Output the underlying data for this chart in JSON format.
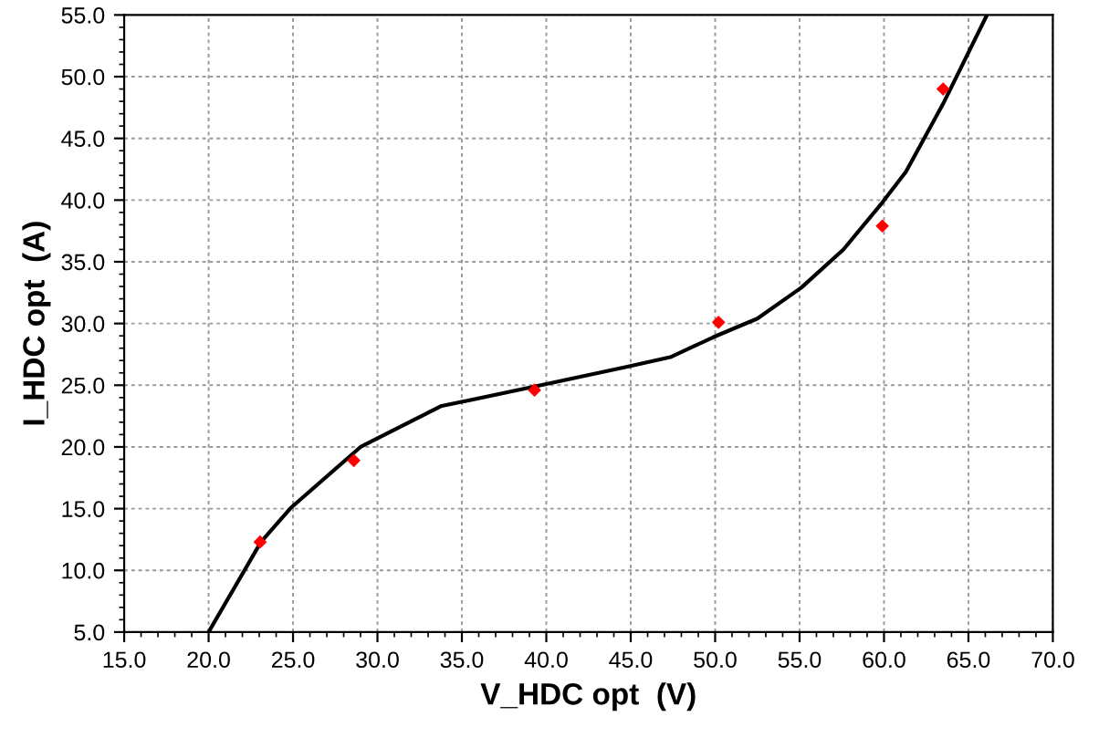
{
  "chart_data": {
    "type": "scatter",
    "xlabel": "V_HDC opt  (V)",
    "ylabel": "I_HDC opt  (A)",
    "series": [
      {
        "color": "#ff0000",
        "marker": "diamond",
        "x": [
          23.05,
          28.6,
          39.3,
          50.2,
          59.9,
          63.5
        ],
        "values": [
          12.3,
          18.9,
          24.6,
          30.1,
          37.9,
          49.0
        ]
      },
      {
        "type": "line",
        "color": "#000000",
        "marker": "none",
        "x": [
          20.0,
          23.1,
          24.9,
          29.0,
          33.75,
          40.0,
          44.8,
          47.4,
          49.9,
          52.5,
          55.1,
          57.6,
          59.9,
          61.3,
          63.5,
          66.1
        ],
        "values": [
          5.0,
          12.3,
          15.1,
          20.0,
          23.3,
          25.1,
          26.5,
          27.3,
          28.9,
          30.4,
          32.9,
          36.0,
          39.8,
          42.3,
          47.8,
          55.0
        ]
      }
    ],
    "xlim": [
      15,
      70
    ],
    "ylim": [
      5,
      55
    ],
    "xticks": [
      {
        "value": 15,
        "label": "15.0"
      },
      {
        "value": 20,
        "label": "20.0"
      },
      {
        "value": 25,
        "label": "25.0"
      },
      {
        "value": 30,
        "label": "30.0"
      },
      {
        "value": 35,
        "label": "35.0"
      },
      {
        "value": 40,
        "label": "40.0"
      },
      {
        "value": 45,
        "label": "45.0"
      },
      {
        "value": 50,
        "label": "50.0"
      },
      {
        "value": 55,
        "label": "55.0"
      },
      {
        "value": 60,
        "label": "60.0"
      },
      {
        "value": 65,
        "label": "65.0"
      },
      {
        "value": 70,
        "label": "70.0"
      }
    ],
    "yticks": [
      {
        "value": 5,
        "label": "5.0"
      },
      {
        "value": 10,
        "label": "10.0"
      },
      {
        "value": 15,
        "label": "15.0"
      },
      {
        "value": 20,
        "label": "20.0"
      },
      {
        "value": 25,
        "label": "25.0"
      },
      {
        "value": 30,
        "label": "30.0"
      },
      {
        "value": 35,
        "label": "35.0"
      },
      {
        "value": 40,
        "label": "40.0"
      },
      {
        "value": 45,
        "label": "45.0"
      },
      {
        "value": 50,
        "label": "50.0"
      },
      {
        "value": 55,
        "label": "55.0"
      }
    ],
    "grid": true
  }
}
